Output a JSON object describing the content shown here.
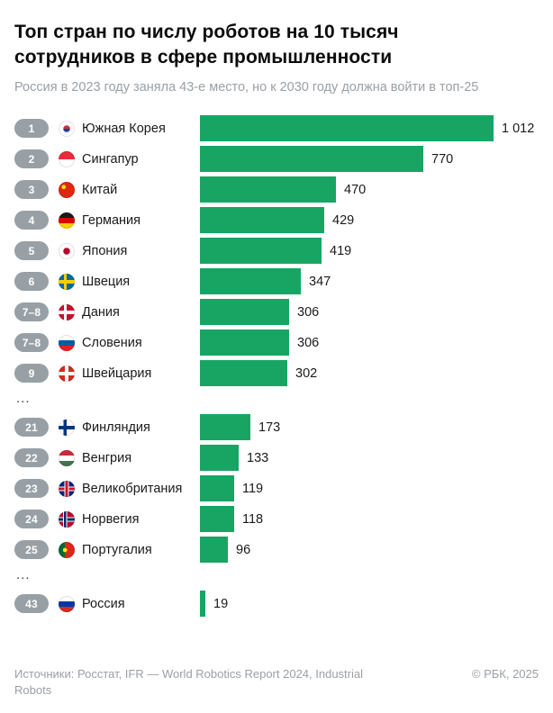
{
  "title": "Топ стран по числу роботов на 10 тысяч сотрудников в сфере промышленности",
  "subtitle": "Россия в 2023 году заняла 43-е место, но к 2030 году должна войти в топ-25",
  "footer": {
    "sources": "Источники: Росстат, IFR — World Robotics Report 2024, Industrial Robots",
    "copyright": "© РБК, 2025"
  },
  "chart_data": {
    "type": "bar",
    "orientation": "horizontal",
    "title": "Топ стран по числу роботов на 10 тысяч сотрудников в сфере промышленности",
    "xlabel": "",
    "ylabel": "",
    "max_value": 1012,
    "xlim": [
      0,
      1012
    ],
    "bar_color": "#18a564",
    "rank_badge_color": "#98a0a6",
    "ellipsis": "...",
    "groups": [
      {
        "rows": [
          {
            "rank": "1",
            "country": "Южная Корея",
            "value": 1012,
            "value_label": "1 012",
            "flag": "south-korea-flag",
            "flag_css": "radial-gradient(circle at 50% 50%, transparent 0 29%, #ffffff 30%), linear-gradient(180deg, #cd2e3a 50%, #0047a0 50%)"
          },
          {
            "rank": "2",
            "country": "Сингапур",
            "value": 770,
            "value_label": "770",
            "flag": "singapore-flag",
            "flag_css": "linear-gradient(180deg, #ed2939 50%, #ffffff 50%)"
          },
          {
            "rank": "3",
            "country": "Китай",
            "value": 470,
            "value_label": "470",
            "flag": "china-flag",
            "flag_css": "radial-gradient(circle at 32% 32%, #ffde00 0 13%, transparent 14%), linear-gradient(#de2910, #de2910)"
          },
          {
            "rank": "4",
            "country": "Германия",
            "value": 429,
            "value_label": "429",
            "flag": "germany-flag",
            "flag_css": "linear-gradient(180deg, #1a1a1a 33%, #dd0000 33% 66%, #ffce00 66%)"
          },
          {
            "rank": "5",
            "country": "Япония",
            "value": 419,
            "value_label": "419",
            "flag": "japan-flag",
            "flag_css": "radial-gradient(circle at 50% 50%, #bc002d 0 29%, #ffffff 30%)"
          },
          {
            "rank": "6",
            "country": "Швеция",
            "value": 347,
            "value_label": "347",
            "flag": "sweden-flag",
            "flag_css": "linear-gradient(90deg, transparent 0 32%, #fecc02 32% 50%, transparent 50%), linear-gradient(180deg, #006aa7 0 40%, #fecc02 40% 62%, #006aa7 62%)"
          },
          {
            "rank": "7–8",
            "country": "Дания",
            "value": 306,
            "value_label": "306",
            "flag": "denmark-flag",
            "flag_css": "linear-gradient(90deg, transparent 0 32%, #ffffff 32% 50%, transparent 50%), linear-gradient(180deg, #c8102e 0 40%, #ffffff 40% 62%, #c8102e 62%)"
          },
          {
            "rank": "7–8",
            "country": "Словения",
            "value": 306,
            "value_label": "306",
            "flag": "slovenia-flag",
            "flag_css": "linear-gradient(180deg, #ffffff 33%, #005da4 33% 66%, #ed1c24 66%)"
          },
          {
            "rank": "9",
            "country": "Швейцария",
            "value": 302,
            "value_label": "302",
            "flag": "switzerland-flag",
            "flag_css": "linear-gradient(90deg, transparent 0 40%, #ffffff 40% 62%, transparent 62%), linear-gradient(180deg, #d52b1e 0 40%, #ffffff 40% 62%, #d52b1e 62%)"
          }
        ]
      },
      {
        "rows": [
          {
            "rank": "21",
            "country": "Финляндия",
            "value": 173,
            "value_label": "173",
            "flag": "finland-flag",
            "flag_css": "linear-gradient(90deg, transparent 0 30%, #003580 30% 50%, transparent 50%), linear-gradient(180deg, #ffffff 0 40%, #003580 40% 62%, #ffffff 62%)"
          },
          {
            "rank": "22",
            "country": "Венгрия",
            "value": 133,
            "value_label": "133",
            "flag": "hungary-flag",
            "flag_css": "linear-gradient(180deg, #ce2939 33%, #ffffff 33% 66%, #477050 66%)"
          },
          {
            "rank": "23",
            "country": "Великобритания",
            "value": 119,
            "value_label": "119",
            "flag": "united-kingdom-flag",
            "flag_css": "linear-gradient(90deg, transparent 0 36%, #ffffff 36% 42%, #cf142b 42% 58%, #ffffff 58% 64%, transparent 64%), linear-gradient(180deg, #00247d 0 36%, #ffffff 36% 42%, #cf142b 42% 58%, #ffffff 58% 64%, #00247d 64%)"
          },
          {
            "rank": "24",
            "country": "Норвегия",
            "value": 118,
            "value_label": "118",
            "flag": "norway-flag",
            "flag_css": "linear-gradient(90deg, transparent 0 28%, #ffffff 28% 34%, #002868 34% 48%, #ffffff 48% 54%, transparent 54%), linear-gradient(180deg, #ba0c2f 0 36%, #ffffff 36% 42%, #002868 42% 58%, #ffffff 58% 64%, #ba0c2f 64%)"
          },
          {
            "rank": "25",
            "country": "Португалия",
            "value": 96,
            "value_label": "96",
            "flag": "portugal-flag",
            "flag_css": "radial-gradient(circle at 40% 50%, #ffe900 0 16%, transparent 17%), linear-gradient(90deg, #046a38 0 40%, #da291c 40%)"
          }
        ]
      },
      {
        "rows": [
          {
            "rank": "43",
            "country": "Россия",
            "value": 19,
            "value_label": "19",
            "flag": "russia-flag",
            "flag_css": "linear-gradient(180deg, #ffffff 33%, #0039a6 33% 66%, #d52b1e 66%)"
          }
        ]
      }
    ]
  }
}
